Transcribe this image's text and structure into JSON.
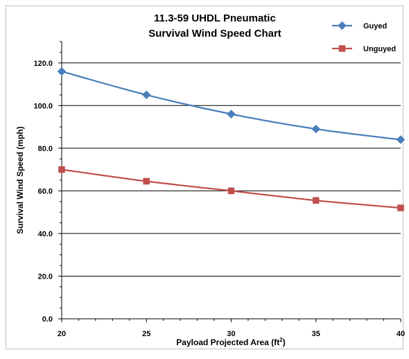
{
  "chart_data": {
    "type": "line",
    "title": [
      "11.3-59 UHDL Pneumatic",
      "Survival Wind Speed Chart"
    ],
    "xlabel": "Payload Projected Area (ft",
    "xlabel_sup": "2",
    "xlabel_suffix": ")",
    "ylabel": "Survival Wind Speed (mph)",
    "x": [
      20,
      25,
      30,
      35,
      40
    ],
    "xlim": [
      20,
      40
    ],
    "ylim": [
      0,
      130
    ],
    "x_ticks": [
      "20",
      "25",
      "30",
      "35",
      "40"
    ],
    "y_ticks": [
      "0.0",
      "20.0",
      "40.0",
      "60.0",
      "80.0",
      "100.0",
      "120.0"
    ],
    "grid": "horizontal",
    "legend_position": "top-right",
    "series": [
      {
        "name": "Guyed",
        "values": [
          116,
          105,
          96,
          89,
          84
        ],
        "color": "#4a7ebb",
        "marker": "diamond"
      },
      {
        "name": "Unguyed",
        "values": [
          70,
          64.5,
          60,
          55.5,
          52
        ],
        "color": "#c0504d",
        "marker": "square"
      }
    ]
  }
}
